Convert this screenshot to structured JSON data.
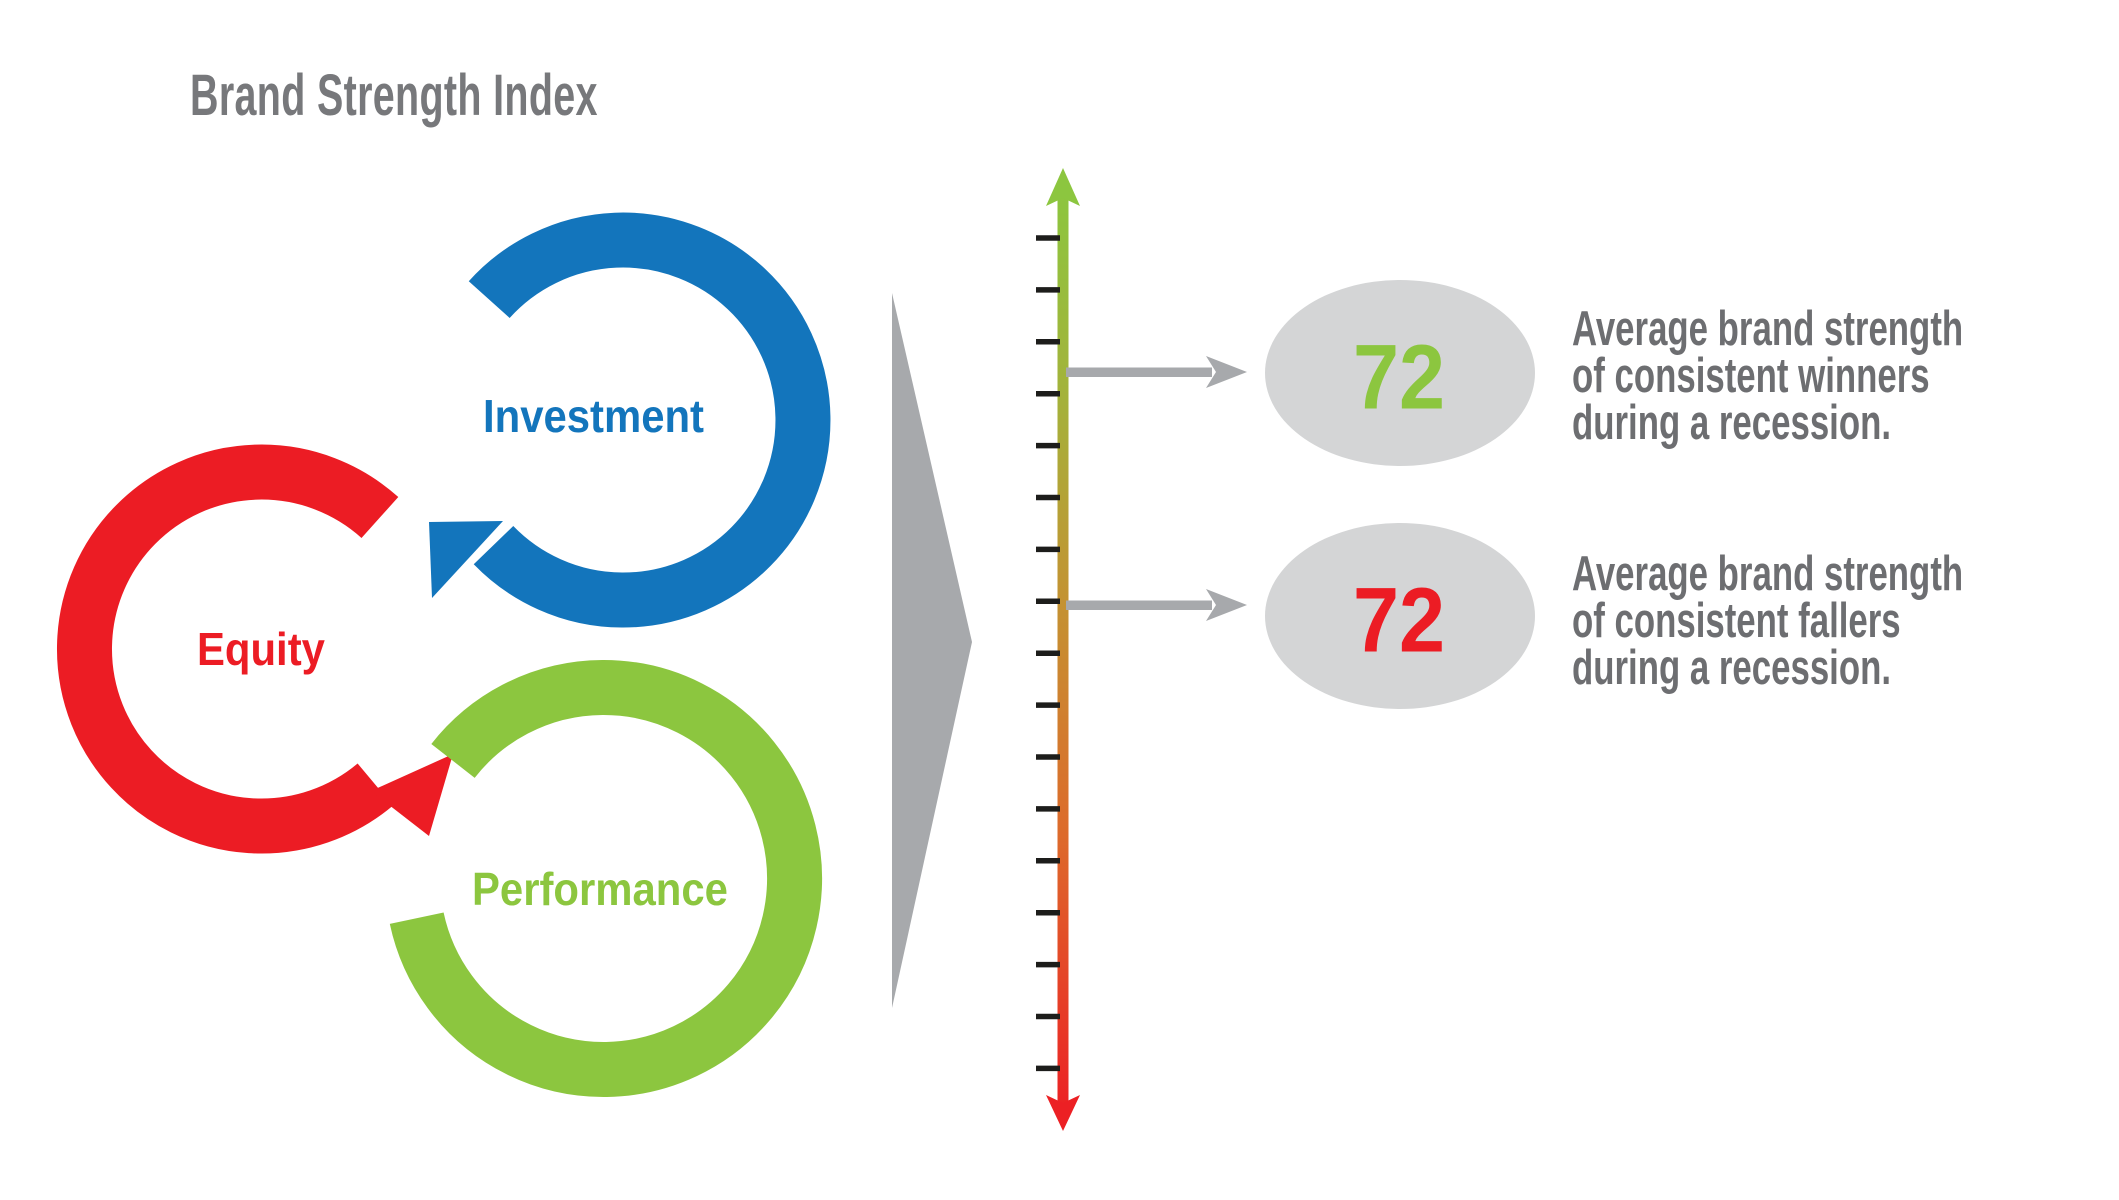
{
  "title": "Brand Strength Index",
  "cycle": {
    "segments": [
      {
        "id": "investment",
        "label": "Investment",
        "color": "#1375BC"
      },
      {
        "id": "equity",
        "label": "Equity",
        "color": "#EC1C24"
      },
      {
        "id": "performance",
        "label": "Performance",
        "color": "#8CC63F"
      }
    ]
  },
  "scale": {
    "tick_count": 17,
    "top_color": "#8CC63F",
    "bottom_color": "#EC1C24",
    "orientation": "vertical"
  },
  "callouts": [
    {
      "value": "72",
      "value_color": "#8CC63F",
      "lines": [
        "Average brand strength",
        "of consistent winners",
        "during a recession."
      ]
    },
    {
      "value": "72",
      "value_color": "#EC1C24",
      "lines": [
        "Average brand strength",
        "of consistent fallers",
        "during a recession."
      ]
    }
  ],
  "colors": {
    "title_gray": "#77787B",
    "body_gray": "#6D6E71",
    "shape_gray": "#A7A9AC",
    "ellipse_gray": "#D4D5D6",
    "tick_black": "#1D1D1B"
  }
}
